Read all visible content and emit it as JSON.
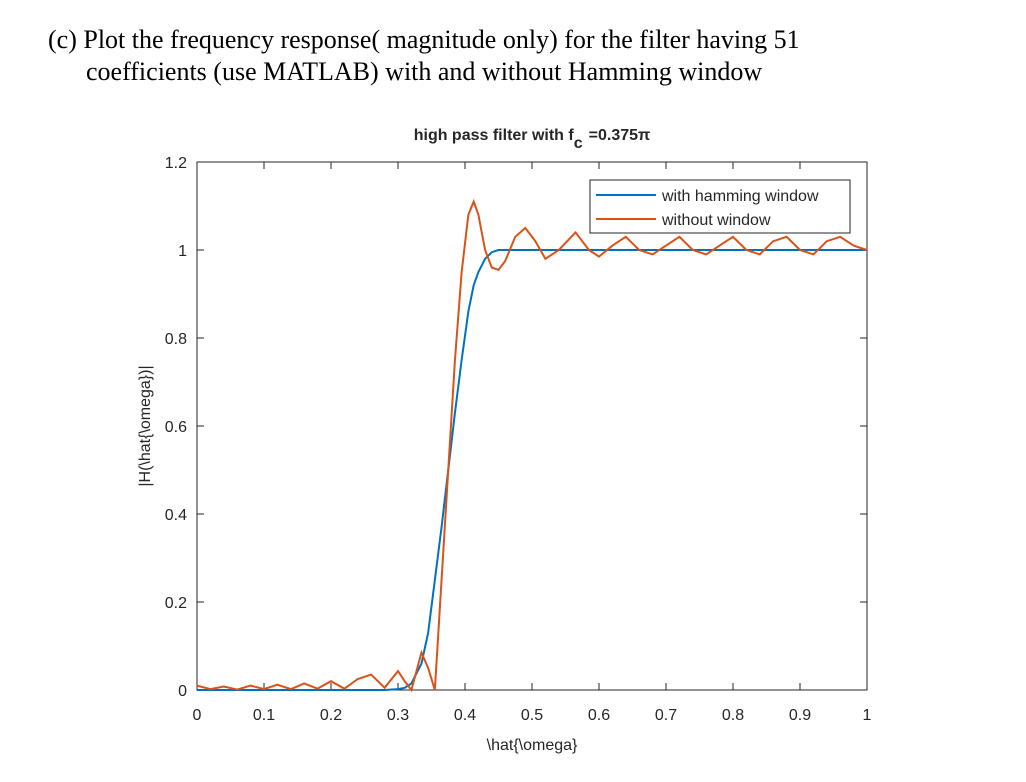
{
  "question": [
    "(c) Plot the frequency response( magnitude only) for the filter having 51",
    "coefficients (use MATLAB) with and without Hamming window"
  ],
  "chart_data": {
    "type": "line",
    "title": "high pass filter with f",
    "title_subscript": "c",
    "title_suffix": "=0.375π",
    "x_label": "\\hat{\\omega}",
    "y_label": "|H(\\hat{\\omega})|",
    "x": [
      0,
      0.02,
      0.04,
      0.06,
      0.08,
      0.1,
      0.12,
      0.14,
      0.16,
      0.18,
      0.2,
      0.22,
      0.24,
      0.26,
      0.28,
      0.3,
      0.31,
      0.32,
      0.335,
      0.345,
      0.355,
      0.365,
      0.375,
      0.385,
      0.395,
      0.405,
      0.413,
      0.42,
      0.43,
      0.44,
      0.45,
      0.46,
      0.475,
      0.49,
      0.505,
      0.52,
      0.54,
      0.565,
      0.585,
      0.6,
      0.62,
      0.64,
      0.66,
      0.68,
      0.7,
      0.72,
      0.74,
      0.76,
      0.78,
      0.8,
      0.82,
      0.84,
      0.86,
      0.88,
      0.9,
      0.92,
      0.94,
      0.96,
      0.98,
      1.0
    ],
    "series": [
      {
        "name": "with hamming window",
        "color": "#0072bd",
        "values": [
          0,
          0,
          0,
          0,
          0,
          0,
          0,
          0,
          0,
          0,
          0,
          0,
          0,
          0,
          0,
          0.002,
          0.005,
          0.015,
          0.06,
          0.13,
          0.25,
          0.37,
          0.5,
          0.63,
          0.75,
          0.86,
          0.92,
          0.95,
          0.98,
          0.995,
          1.0,
          1.0,
          1.0,
          1.0,
          1.0,
          1.0,
          1.0,
          1.0,
          1.0,
          1.0,
          1,
          1,
          1,
          1,
          1,
          1,
          1,
          1,
          1,
          1,
          1,
          1,
          1,
          1,
          1,
          1,
          1,
          1,
          1,
          1
        ]
      },
      {
        "name": "without window",
        "color": "#d95319",
        "values": [
          0.01,
          0.002,
          0.008,
          0.001,
          0.01,
          0.002,
          0.012,
          0.002,
          0.015,
          0.003,
          0.02,
          0.003,
          0.025,
          0.035,
          0.005,
          0.043,
          0.02,
          0.0,
          0.085,
          0.05,
          0.0,
          0.25,
          0.5,
          0.75,
          0.95,
          1.08,
          1.11,
          1.08,
          1.0,
          0.96,
          0.955,
          0.975,
          1.03,
          1.05,
          1.02,
          0.98,
          1.0,
          1.04,
          1.0,
          0.985,
          1.01,
          1.03,
          1.0,
          0.99,
          1.01,
          1.03,
          1.0,
          0.99,
          1.01,
          1.03,
          1.0,
          0.99,
          1.02,
          1.03,
          1.0,
          0.99,
          1.02,
          1.03,
          1.01,
          1.0
        ]
      }
    ],
    "xlim": [
      0,
      1
    ],
    "xticks": [
      0,
      0.1,
      0.2,
      0.3,
      0.4,
      0.5,
      0.6,
      0.7,
      0.8,
      0.9,
      1
    ],
    "ylim": [
      0,
      1.2
    ],
    "yticks": [
      0,
      0.2,
      0.4,
      0.6,
      0.8,
      1,
      1.2
    ],
    "grid": false,
    "legend": "top-right"
  }
}
